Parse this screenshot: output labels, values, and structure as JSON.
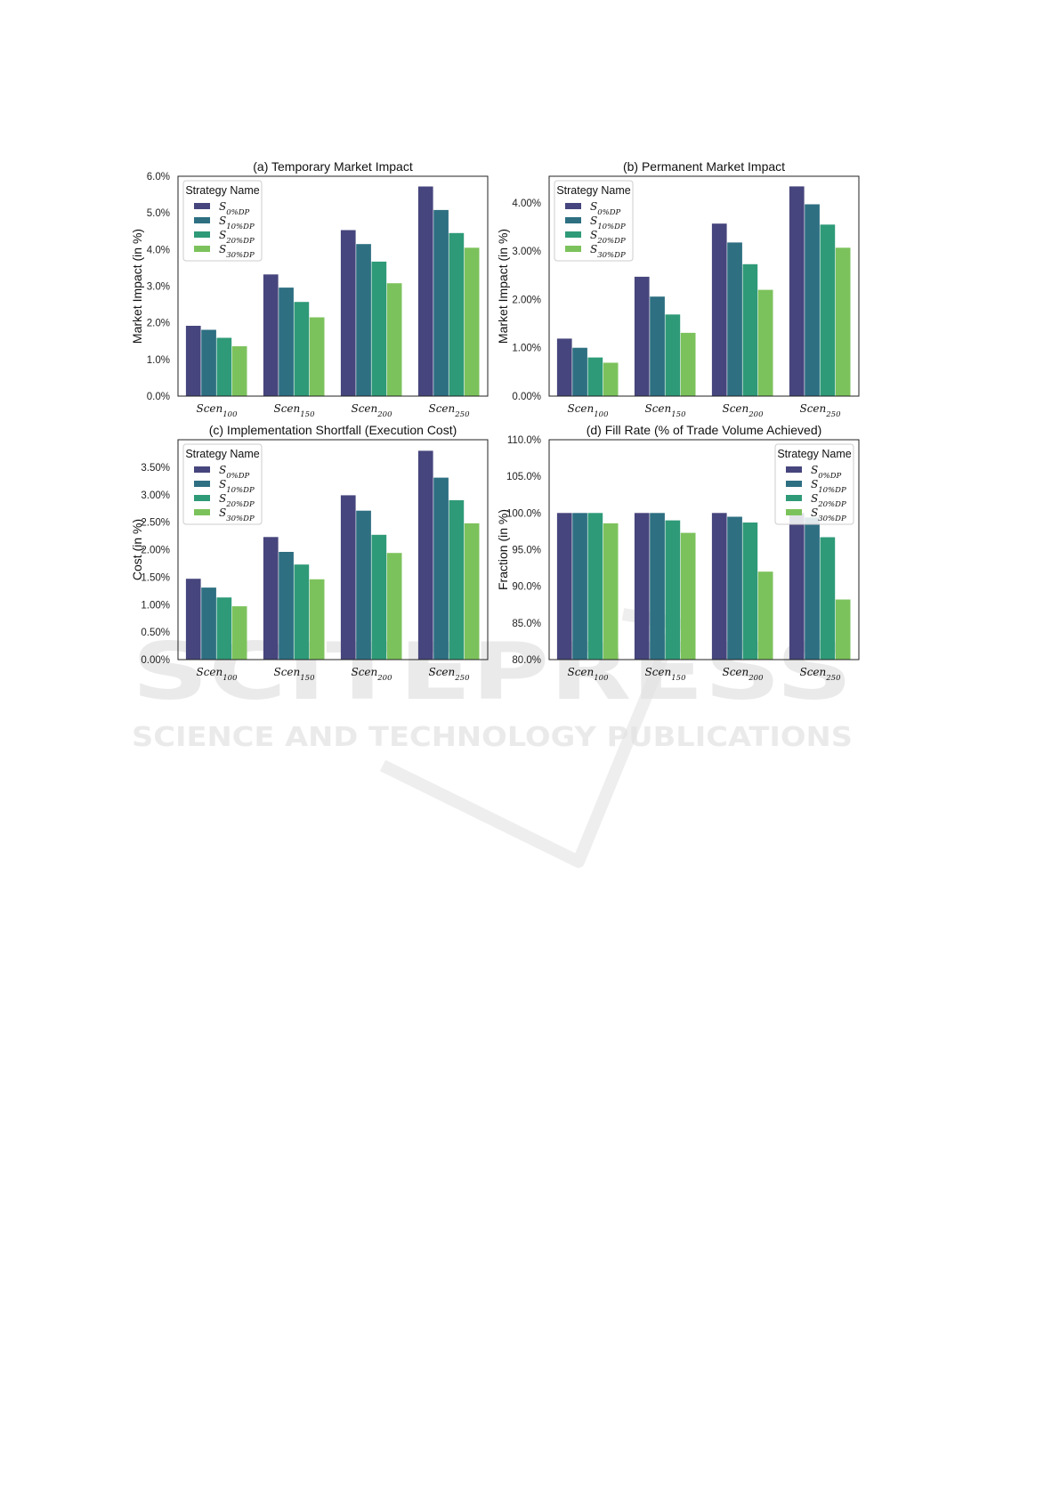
{
  "series_names": [
    {
      "base": "S",
      "sub": "0%DP"
    },
    {
      "base": "S",
      "sub": "10%DP"
    },
    {
      "base": "S",
      "sub": "20%DP"
    },
    {
      "base": "S",
      "sub": "30%DP"
    }
  ],
  "categories": [
    {
      "base": "Scen",
      "sub": "100"
    },
    {
      "base": "Scen",
      "sub": "150"
    },
    {
      "base": "Scen",
      "sub": "200"
    },
    {
      "base": "Scen",
      "sub": "250"
    }
  ],
  "colors": [
    "#46457d",
    "#2e6f82",
    "#2f9a78",
    "#7cc25c"
  ],
  "watermark": {
    "main": "SCITEPRESS",
    "sub": "SCIENCE AND TECHNOLOGY PUBLICATIONS"
  },
  "chart_data": [
    {
      "type": "bar",
      "title": "(a) Temporary Market Impact",
      "ylabel": "Market Impact (in %)",
      "ylim": [
        0,
        6.0
      ],
      "yticks": [
        0,
        1,
        2,
        3,
        4,
        5,
        6
      ],
      "ytick_labels": [
        "0.0%",
        "1.0%",
        "2.0%",
        "3.0%",
        "4.0%",
        "5.0%",
        "6.0%"
      ],
      "legend": {
        "title": "Strategy Name",
        "position": "top-left"
      },
      "series": [
        {
          "values": [
            1.92,
            3.32,
            4.53,
            5.72
          ]
        },
        {
          "values": [
            1.81,
            2.96,
            4.15,
            5.08
          ]
        },
        {
          "values": [
            1.59,
            2.57,
            3.67,
            4.45
          ]
        },
        {
          "values": [
            1.36,
            2.15,
            3.08,
            4.05
          ]
        }
      ]
    },
    {
      "type": "bar",
      "title": "(b) Permanent Market Impact",
      "ylabel": "Market Impact (in %)",
      "ylim": [
        0,
        4.55
      ],
      "yticks": [
        0,
        1,
        2,
        3,
        4
      ],
      "ytick_labels": [
        "0.00%",
        "1.00%",
        "2.00%",
        "3.00%",
        "4.00%"
      ],
      "legend": {
        "title": "Strategy Name",
        "position": "top-left"
      },
      "series": [
        {
          "values": [
            1.19,
            2.47,
            3.57,
            4.34
          ]
        },
        {
          "values": [
            1.0,
            2.06,
            3.18,
            3.97
          ]
        },
        {
          "values": [
            0.8,
            1.69,
            2.73,
            3.55
          ]
        },
        {
          "values": [
            0.69,
            1.31,
            2.2,
            3.07
          ]
        }
      ]
    },
    {
      "type": "bar",
      "title": "(c) Implementation Shortfall (Execution Cost)",
      "ylabel": "Cost (in %)",
      "ylim": [
        0,
        4.0
      ],
      "yticks": [
        0,
        0.5,
        1.0,
        1.5,
        2.0,
        2.5,
        3.0,
        3.5
      ],
      "ytick_labels": [
        "0.00%",
        "0.50%",
        "1.00%",
        "1.50%",
        "2.00%",
        "2.50%",
        "3.00%",
        "3.50%"
      ],
      "legend": {
        "title": "Strategy Name",
        "position": "top-left"
      },
      "series": [
        {
          "values": [
            1.47,
            2.23,
            2.99,
            3.8
          ]
        },
        {
          "values": [
            1.31,
            1.96,
            2.71,
            3.31
          ]
        },
        {
          "values": [
            1.13,
            1.73,
            2.27,
            2.9
          ]
        },
        {
          "values": [
            0.97,
            1.46,
            1.94,
            2.48
          ]
        }
      ]
    },
    {
      "type": "bar",
      "title": "(d) Fill Rate (% of Trade Volume Achieved)",
      "ylabel": "Fraction (in %)",
      "ylim": [
        80,
        110
      ],
      "yticks": [
        80,
        85,
        90,
        95,
        100,
        105,
        110
      ],
      "ytick_labels": [
        "80.0%",
        "85.0%",
        "90.0%",
        "95.0%",
        "100.0%",
        "105.0%",
        "110.0%"
      ],
      "legend": {
        "title": "Strategy Name",
        "position": "top-right"
      },
      "series": [
        {
          "values": [
            100.0,
            100.0,
            100.0,
            100.0
          ]
        },
        {
          "values": [
            100.0,
            100.0,
            99.5,
            99.4
          ]
        },
        {
          "values": [
            100.0,
            99.0,
            98.7,
            96.7
          ]
        },
        {
          "values": [
            98.6,
            97.3,
            92.0,
            88.2
          ]
        }
      ]
    }
  ]
}
